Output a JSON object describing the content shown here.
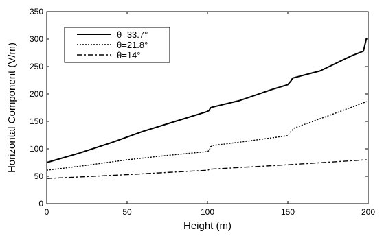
{
  "chart_data": {
    "type": "line",
    "title": "",
    "xlabel": "Height (m)",
    "ylabel": "Horizontal Component (V/m)",
    "xlim": [
      0,
      200
    ],
    "ylim": [
      0,
      350
    ],
    "xticks": [
      "0",
      "50",
      "100",
      "150",
      "200"
    ],
    "yticks": [
      "0",
      "50",
      "100",
      "150",
      "200",
      "250",
      "300",
      "350"
    ],
    "grid": false,
    "legend_position": "top-left",
    "series": [
      {
        "name": "θ=33.7°",
        "style": "solid",
        "color": "#000000",
        "points": [
          [
            0,
            75
          ],
          [
            20,
            92
          ],
          [
            40,
            111
          ],
          [
            60,
            132
          ],
          [
            80,
            150
          ],
          [
            100,
            168
          ],
          [
            101,
            170
          ],
          [
            102,
            175
          ],
          [
            103,
            176
          ],
          [
            120,
            188
          ],
          [
            140,
            208
          ],
          [
            150,
            217
          ],
          [
            152,
            224
          ],
          [
            153,
            229
          ],
          [
            170,
            242
          ],
          [
            190,
            270
          ],
          [
            197,
            278
          ],
          [
            198,
            290
          ],
          [
            199,
            302
          ]
        ]
      },
      {
        "name": "θ=21.8°",
        "style": "dotted",
        "color": "#000000",
        "points": [
          [
            0,
            61
          ],
          [
            25,
            70
          ],
          [
            50,
            80
          ],
          [
            75,
            88
          ],
          [
            100,
            95
          ],
          [
            101,
            97
          ],
          [
            102,
            104
          ],
          [
            103,
            106
          ],
          [
            125,
            114
          ],
          [
            150,
            124
          ],
          [
            152,
            132
          ],
          [
            154,
            138
          ],
          [
            175,
            160
          ],
          [
            199,
            186
          ]
        ]
      },
      {
        "name": "θ=14°",
        "style": "dashdot",
        "color": "#000000",
        "points": [
          [
            0,
            46
          ],
          [
            50,
            53
          ],
          [
            100,
            61
          ],
          [
            102,
            63
          ],
          [
            150,
            71
          ],
          [
            199,
            80
          ]
        ]
      }
    ]
  }
}
